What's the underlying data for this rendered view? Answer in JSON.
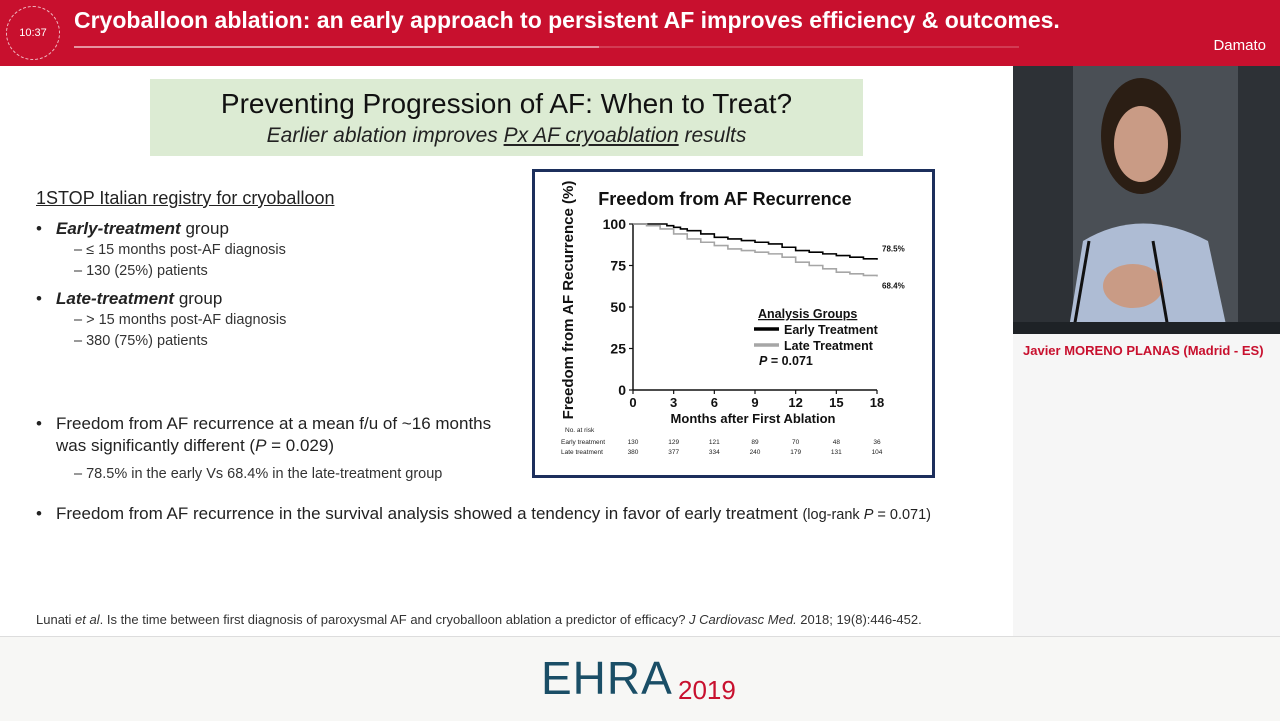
{
  "header": {
    "clock": "10:37",
    "title": "Cryoballoon ablation: an early approach to persistent AF improves efficiency & outcomes.",
    "speaker": "Damato"
  },
  "slide": {
    "title_main": "Preventing Progression of AF: When to Treat?",
    "title_sub_pre": "Earlier ablation improves ",
    "title_sub_under": "Px AF cryoablation",
    "title_sub_post": " results",
    "registry": "1STOP Italian registry for cryoballoon",
    "early": {
      "label": "Early-treatment",
      "suffix": " group",
      "sub1": "–  ≤ 15 months post-AF diagnosis",
      "sub2": "–  130 (25%) patients"
    },
    "late": {
      "label": "Late-treatment",
      "suffix": " group",
      "sub1": "–  > 15 months post-AF diagnosis",
      "sub2": "–  380 (75%) patients"
    },
    "bullet3_line1": "Freedom from AF recurrence at a mean f/u of ~16 months",
    "bullet3_line2_pre": "was significantly different (",
    "bullet3_p": "P",
    "bullet3_line2_post": " = 0.029)",
    "bullet3_sub": "–  78.5% in the early Vs 68.4% in the late-treatment group",
    "bullet4_main": "Freedom from AF recurrence in the survival analysis showed a tendency in favor of early treatment ",
    "bullet4_small_pre": "(log-rank ",
    "bullet4_small_p": "P",
    "bullet4_small_post": " = 0.071)",
    "ref_pre": "Lunati ",
    "ref_etal": "et al",
    "ref_mid": ". Is the time between first diagnosis of paroxysmal AF and cryoballoon ablation a predictor of efficacy? ",
    "ref_journal": "J Cardiovasc Med.",
    "ref_post": " 2018; 19(8):446-452."
  },
  "speaker_panel": {
    "name": "Javier MORENO PLANAS (Madrid - ES)"
  },
  "footer": {
    "logo": "EHRA",
    "year": "2019"
  },
  "chart_data": {
    "type": "line",
    "title": "Freedom from AF Recurrence",
    "xlabel": "Months after First Ablation",
    "ylabel": "Freedom from AF Recurrence (%)",
    "xlim": [
      0,
      18
    ],
    "ylim": [
      0,
      100
    ],
    "xticks": [
      0,
      3,
      6,
      9,
      12,
      15,
      18
    ],
    "yticks": [
      0,
      25,
      50,
      75,
      100
    ],
    "legend_title": "Analysis Groups",
    "pvalue_label": "P",
    "pvalue_text": " = 0.071",
    "series": [
      {
        "name": "Early Treatment",
        "color": "#000000",
        "end_label": "78.5%",
        "x": [
          0,
          1.5,
          2.5,
          3,
          3.5,
          4,
          5,
          6,
          7,
          8,
          9,
          10,
          11,
          12,
          13,
          14,
          15,
          16,
          17,
          18
        ],
        "y": [
          100,
          100,
          99,
          98,
          97,
          96,
          94,
          92,
          91,
          90,
          89,
          88,
          86,
          84,
          83,
          82,
          81,
          80,
          79,
          78.5
        ]
      },
      {
        "name": "Late Treatment",
        "color": "#a6a6a6",
        "end_label": "68.4%",
        "x": [
          0,
          1,
          2,
          3,
          4,
          5,
          6,
          7,
          8,
          9,
          10,
          11,
          12,
          13,
          14,
          15,
          16,
          17,
          18
        ],
        "y": [
          100,
          99,
          97,
          94,
          91,
          89,
          87,
          85,
          84,
          83,
          82,
          80,
          77,
          75,
          73,
          71,
          70,
          69,
          68.4
        ]
      }
    ],
    "risk_table": {
      "header": "No. at risk",
      "rows": [
        {
          "label": "Early treatment",
          "values": [
            "130",
            "129",
            "121",
            "89",
            "70",
            "48",
            "36"
          ]
        },
        {
          "label": "Late treatment",
          "values": [
            "380",
            "377",
            "334",
            "240",
            "179",
            "131",
            "104"
          ]
        }
      ]
    }
  }
}
